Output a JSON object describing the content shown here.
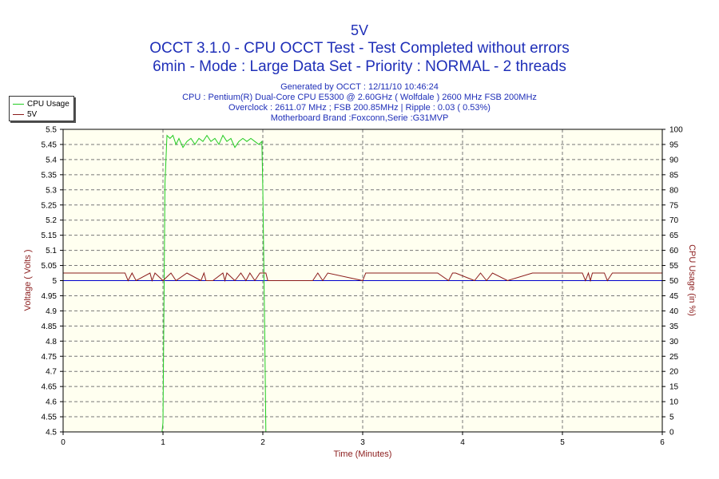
{
  "header": {
    "title": "5V",
    "subtitle1": "OCCT 3.1.0 - CPU OCCT Test - Test Completed without errors",
    "subtitle2": "6min - Mode : Large Data Set - Priority : NORMAL - 2 threads"
  },
  "info": {
    "generated": "Generated by OCCT : 12/11/10 10:46:24",
    "cpu": "CPU : Pentium(R) Dual-Core CPU E5300 @ 2.60GHz ( Wolfdale ) 2600 MHz FSB 200MHz",
    "overclock": "Overclock : 2611.07 MHz ; FSB 200.85MHz | Ripple : 0.03 ( 0.53%)",
    "motherboard": "Motherboard Brand :Foxconn,Serie :G31MVP"
  },
  "legend": {
    "items": [
      {
        "label": "CPU Usage",
        "color": "#22cc22"
      },
      {
        "label": "5V",
        "color": "#8b1c1c"
      }
    ]
  },
  "colors": {
    "plot_bg": "#fffff0",
    "grid": "#777777",
    "cpu": "#22cc22",
    "voltage": "#8b1c1c",
    "reference": "#0000cc",
    "axis_label": "#8b1c1c"
  },
  "chart_data": {
    "type": "line",
    "xlabel": "Time (Minutes)",
    "ylabel": "Voltage ( Volts )",
    "y2label": "CPU Usage (in %)",
    "xlim": [
      0,
      6
    ],
    "ylim": [
      4.5,
      5.5
    ],
    "y2lim": [
      0,
      100
    ],
    "xticks": [
      "0",
      "1",
      "2",
      "3",
      "4",
      "5",
      "6"
    ],
    "yticks": [
      "4.5",
      "4.55",
      "4.6",
      "4.65",
      "4.7",
      "4.75",
      "4.8",
      "4.85",
      "4.9",
      "4.95",
      "5",
      "5.05",
      "5.1",
      "5.15",
      "5.2",
      "5.25",
      "5.3",
      "5.35",
      "5.4",
      "5.45",
      "5.5"
    ],
    "y2ticks": [
      "0",
      "5",
      "10",
      "15",
      "20",
      "25",
      "30",
      "35",
      "40",
      "45",
      "50",
      "55",
      "60",
      "65",
      "70",
      "75",
      "80",
      "85",
      "90",
      "95",
      "100"
    ],
    "grid": true,
    "legend_position": "top-left",
    "reference_line": 5.0,
    "series": [
      {
        "name": "CPU Usage",
        "axis": "right",
        "x": [
          0.99,
          1.0,
          1.02,
          1.04,
          1.07,
          1.1,
          1.13,
          1.16,
          1.2,
          1.24,
          1.28,
          1.32,
          1.36,
          1.4,
          1.44,
          1.48,
          1.52,
          1.56,
          1.6,
          1.64,
          1.68,
          1.72,
          1.76,
          1.8,
          1.84,
          1.88,
          1.92,
          1.96,
          1.99,
          2.0,
          2.02,
          2.03
        ],
        "values": [
          0,
          3,
          82,
          98,
          97,
          98,
          95,
          97,
          94,
          96,
          97,
          95,
          97,
          96,
          98,
          96,
          97,
          95,
          98,
          96,
          97,
          94,
          96,
          97,
          96,
          97,
          96,
          95,
          96,
          80,
          30,
          0
        ]
      },
      {
        "name": "5V",
        "axis": "left",
        "x": [
          0,
          0.62,
          0.65,
          0.69,
          0.73,
          0.87,
          0.89,
          0.92,
          1.0,
          1.08,
          1.13,
          1.24,
          1.38,
          1.41,
          1.43,
          1.5,
          1.6,
          1.62,
          1.64,
          1.72,
          1.78,
          1.83,
          1.87,
          1.92,
          1.97,
          2.03,
          2.05,
          2.5,
          2.55,
          2.6,
          2.65,
          3.0,
          3.03,
          3.2,
          3.5,
          3.75,
          3.86,
          3.9,
          3.93,
          4.12,
          4.18,
          4.24,
          4.3,
          4.45,
          4.7,
          4.9,
          5.2,
          5.23,
          5.26,
          5.28,
          5.3,
          5.42,
          5.45,
          5.5,
          6.0
        ],
        "values": [
          5.025,
          5.025,
          5.0,
          5.025,
          5.0,
          5.025,
          5.0,
          5.025,
          5.0,
          5.025,
          5.0,
          5.025,
          5.0,
          5.025,
          5.0,
          5.0,
          5.025,
          5.0,
          5.025,
          5.0,
          5.025,
          5.0,
          5.025,
          5.0,
          5.025,
          5.025,
          5.0,
          5.0,
          5.025,
          5.0,
          5.025,
          5.0,
          5.025,
          5.025,
          5.025,
          5.025,
          5.0,
          5.025,
          5.025,
          5.0,
          5.025,
          5.0,
          5.025,
          5.0,
          5.025,
          5.025,
          5.025,
          5.0,
          5.025,
          5.0,
          5.025,
          5.025,
          5.0,
          5.025,
          5.025
        ]
      }
    ]
  }
}
